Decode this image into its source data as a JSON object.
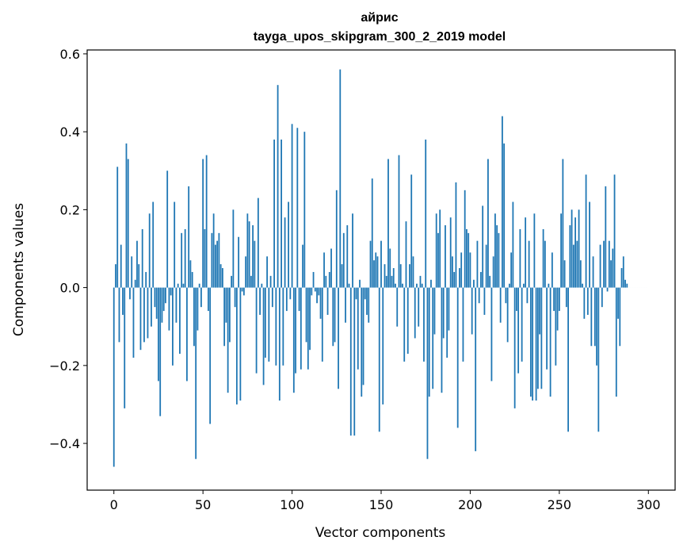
{
  "chart_data": {
    "type": "bar",
    "title": "айрис",
    "subtitle": "tayga_upos_skipgram_300_2_2019 model",
    "xlabel": "Vector components",
    "ylabel": "Components values",
    "xlim": [
      -15,
      315
    ],
    "ylim": [
      -0.52,
      0.61
    ],
    "xticks": [
      0,
      50,
      100,
      150,
      200,
      250,
      300
    ],
    "xtick_labels": [
      "0",
      "50",
      "100",
      "150",
      "200",
      "250",
      "300"
    ],
    "yticks": [
      -0.4,
      -0.2,
      0.0,
      0.2,
      0.4,
      0.6
    ],
    "ytick_labels": [
      "−0.4",
      "−0.2",
      "0.0",
      "0.2",
      "0.4",
      "0.6"
    ],
    "grid": false,
    "bar_color": "#1f77b4",
    "x": [
      0,
      1,
      2,
      3,
      4,
      5,
      6,
      7,
      8,
      9,
      10,
      11,
      12,
      13,
      14,
      15,
      16,
      17,
      18,
      19,
      20,
      21,
      22,
      23,
      24,
      25,
      26,
      27,
      28,
      29,
      30,
      31,
      32,
      33,
      34,
      35,
      36,
      37,
      38,
      39,
      40,
      41,
      42,
      43,
      44,
      45,
      46,
      47,
      48,
      49,
      50,
      51,
      52,
      53,
      54,
      55,
      56,
      57,
      58,
      59,
      60,
      61,
      62,
      63,
      64,
      65,
      66,
      67,
      68,
      69,
      70,
      71,
      72,
      73,
      74,
      75,
      76,
      77,
      78,
      79,
      80,
      81,
      82,
      83,
      84,
      85,
      86,
      87,
      88,
      89,
      90,
      91,
      92,
      93,
      94,
      95,
      96,
      97,
      98,
      99,
      100,
      101,
      102,
      103,
      104,
      105,
      106,
      107,
      108,
      109,
      110,
      111,
      112,
      113,
      114,
      115,
      116,
      117,
      118,
      119,
      120,
      121,
      122,
      123,
      124,
      125,
      126,
      127,
      128,
      129,
      130,
      131,
      132,
      133,
      134,
      135,
      136,
      137,
      138,
      139,
      140,
      141,
      142,
      143,
      144,
      145,
      146,
      147,
      148,
      149,
      150,
      151,
      152,
      153,
      154,
      155,
      156,
      157,
      158,
      159,
      160,
      161,
      162,
      163,
      164,
      165,
      166,
      167,
      168,
      169,
      170,
      171,
      172,
      173,
      174,
      175,
      176,
      177,
      178,
      179,
      180,
      181,
      182,
      183,
      184,
      185,
      186,
      187,
      188,
      189,
      190,
      191,
      192,
      193,
      194,
      195,
      196,
      197,
      198,
      199,
      200,
      201,
      202,
      203,
      204,
      205,
      206,
      207,
      208,
      209,
      210,
      211,
      212,
      213,
      214,
      215,
      216,
      217,
      218,
      219,
      220,
      221,
      222,
      223,
      224,
      225,
      226,
      227,
      228,
      229,
      230,
      231,
      232,
      233,
      234,
      235,
      236,
      237,
      238,
      239,
      240,
      241,
      242,
      243,
      244,
      245,
      246,
      247,
      248,
      249,
      250,
      251,
      252,
      253,
      254,
      255,
      256,
      257,
      258,
      259,
      260,
      261,
      262,
      263,
      264,
      265,
      266,
      267,
      268,
      269,
      270,
      271,
      272,
      273,
      274,
      275,
      276,
      277,
      278,
      279,
      280,
      281,
      282,
      283,
      284,
      285,
      286,
      287,
      288,
      289,
      290,
      291,
      292,
      293,
      294,
      295,
      296,
      297,
      298,
      299
    ],
    "values": [
      -0.46,
      0.06,
      0.31,
      -0.14,
      0.11,
      -0.07,
      -0.31,
      0.37,
      0.33,
      -0.03,
      0.08,
      -0.18,
      0.02,
      0.12,
      0.06,
      -0.16,
      0.15,
      -0.14,
      0.04,
      -0.13,
      0.19,
      -0.1,
      0.22,
      -0.05,
      -0.08,
      -0.24,
      -0.33,
      -0.09,
      -0.06,
      -0.04,
      0.3,
      -0.11,
      -0.02,
      -0.2,
      0.22,
      -0.09,
      0.01,
      -0.17,
      0.14,
      0.01,
      0.15,
      -0.24,
      0.26,
      0.07,
      0.04,
      -0.15,
      -0.44,
      -0.11,
      0.01,
      -0.05,
      0.33,
      0.15,
      0.34,
      -0.06,
      -0.35,
      0.14,
      0.19,
      0.11,
      0.12,
      0.14,
      0.06,
      0.05,
      -0.15,
      -0.09,
      -0.27,
      -0.14,
      0.03,
      0.2,
      -0.05,
      -0.3,
      0.13,
      -0.29,
      -0.01,
      -0.02,
      0.08,
      0.19,
      0.17,
      0.03,
      0.16,
      0.12,
      -0.22,
      0.23,
      -0.07,
      0.01,
      -0.25,
      -0.18,
      0.08,
      -0.19,
      0.03,
      -0.05,
      0.38,
      -0.2,
      0.52,
      -0.29,
      0.38,
      -0.2,
      0.18,
      -0.06,
      0.22,
      -0.03,
      0.42,
      -0.27,
      -0.22,
      0.41,
      -0.06,
      -0.21,
      0.11,
      0.4,
      -0.14,
      -0.21,
      -0.16,
      -0.02,
      0.04,
      -0.01,
      -0.04,
      -0.02,
      -0.08,
      -0.19,
      0.09,
      0.03,
      -0.07,
      0.04,
      0.1,
      -0.15,
      -0.14,
      0.25,
      -0.26,
      0.56,
      0.06,
      0.14,
      -0.09,
      0.16,
      0.01,
      -0.38,
      0.19,
      -0.38,
      -0.03,
      -0.21,
      0.02,
      -0.28,
      -0.25,
      -0.03,
      -0.07,
      -0.09,
      0.12,
      0.28,
      0.07,
      0.09,
      0.08,
      -0.37,
      0.12,
      -0.3,
      0.06,
      0.03,
      0.33,
      0.1,
      0.03,
      0.05,
      0.01,
      -0.1,
      0.34,
      0.06,
      0.01,
      -0.19,
      0.17,
      -0.17,
      0.06,
      0.29,
      0.08,
      -0.13,
      0.01,
      -0.1,
      0.03,
      0.01,
      -0.19,
      0.38,
      -0.44,
      -0.28,
      0.02,
      -0.26,
      -0.12,
      0.19,
      0.14,
      0.2,
      -0.27,
      -0.13,
      0.16,
      -0.18,
      -0.11,
      0.18,
      0.08,
      0.04,
      0.27,
      -0.36,
      0.05,
      0.09,
      -0.19,
      0.25,
      0.15,
      0.14,
      0.09,
      -0.12,
      0.02,
      -0.42,
      0.12,
      -0.04,
      0.04,
      0.21,
      -0.07,
      0.11,
      0.33,
      0.03,
      -0.24,
      0.08,
      0.19,
      0.16,
      0.14,
      -0.09,
      0.44,
      0.37,
      -0.04,
      -0.14,
      0.01,
      0.09,
      0.22,
      -0.31,
      -0.06,
      -0.22,
      0.15,
      -0.19,
      0.01,
      0.18,
      -0.04,
      0.12,
      -0.28,
      -0.29,
      0.19,
      -0.29,
      -0.26,
      -0.12,
      -0.26,
      0.15,
      0.12,
      -0.21,
      0.01,
      -0.28,
      0.09,
      -0.06,
      -0.2,
      -0.11,
      -0.06,
      0.19,
      0.33,
      0.07,
      -0.05,
      -0.37,
      0.16,
      0.2,
      0.11,
      0.18,
      0.12,
      0.2,
      0.07,
      0.01,
      -0.08,
      0.29,
      -0.07,
      0.22,
      -0.15,
      0.08,
      -0.15,
      -0.2,
      -0.37,
      0.11,
      -0.05,
      0.12,
      0.26,
      -0.01,
      0.12,
      0.07,
      0.1,
      0.29,
      -0.28,
      -0.08,
      -0.15,
      0.05,
      0.08,
      0.02,
      0.01,
      0.0,
      0.0,
      0.0,
      0.0,
      0.0,
      0.0,
      0.0,
      0.0,
      0.0,
      0.0,
      0.0
    ]
  }
}
